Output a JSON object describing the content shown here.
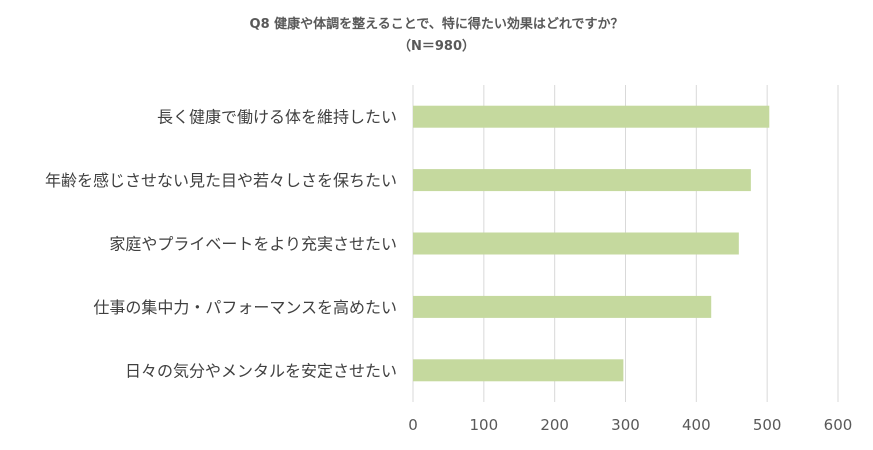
{
  "chart_data": {
    "type": "bar",
    "orientation": "horizontal",
    "title": "Q8 健康や体調を整えることで、特に得たい効果はどれですか？",
    "subtitle": "（N＝980）",
    "categories": [
      "長く健康で働ける体を維持したい",
      "年齢を感じさせない見た目や若々しさを保ちたい",
      "家庭やプライベートをより充実させたい",
      "仕事の集中力・パフォーマンスを高めたい",
      "日々の気分やメンタルを安定させたい"
    ],
    "values": [
      503,
      477,
      460,
      421,
      297
    ],
    "xlim": [
      0,
      600
    ],
    "xticks": [
      "0",
      "100",
      "200",
      "300",
      "400",
      "500",
      "600"
    ],
    "grid": true,
    "bar_color": "#c5d99e",
    "grid_color": "#d9d9d9"
  }
}
